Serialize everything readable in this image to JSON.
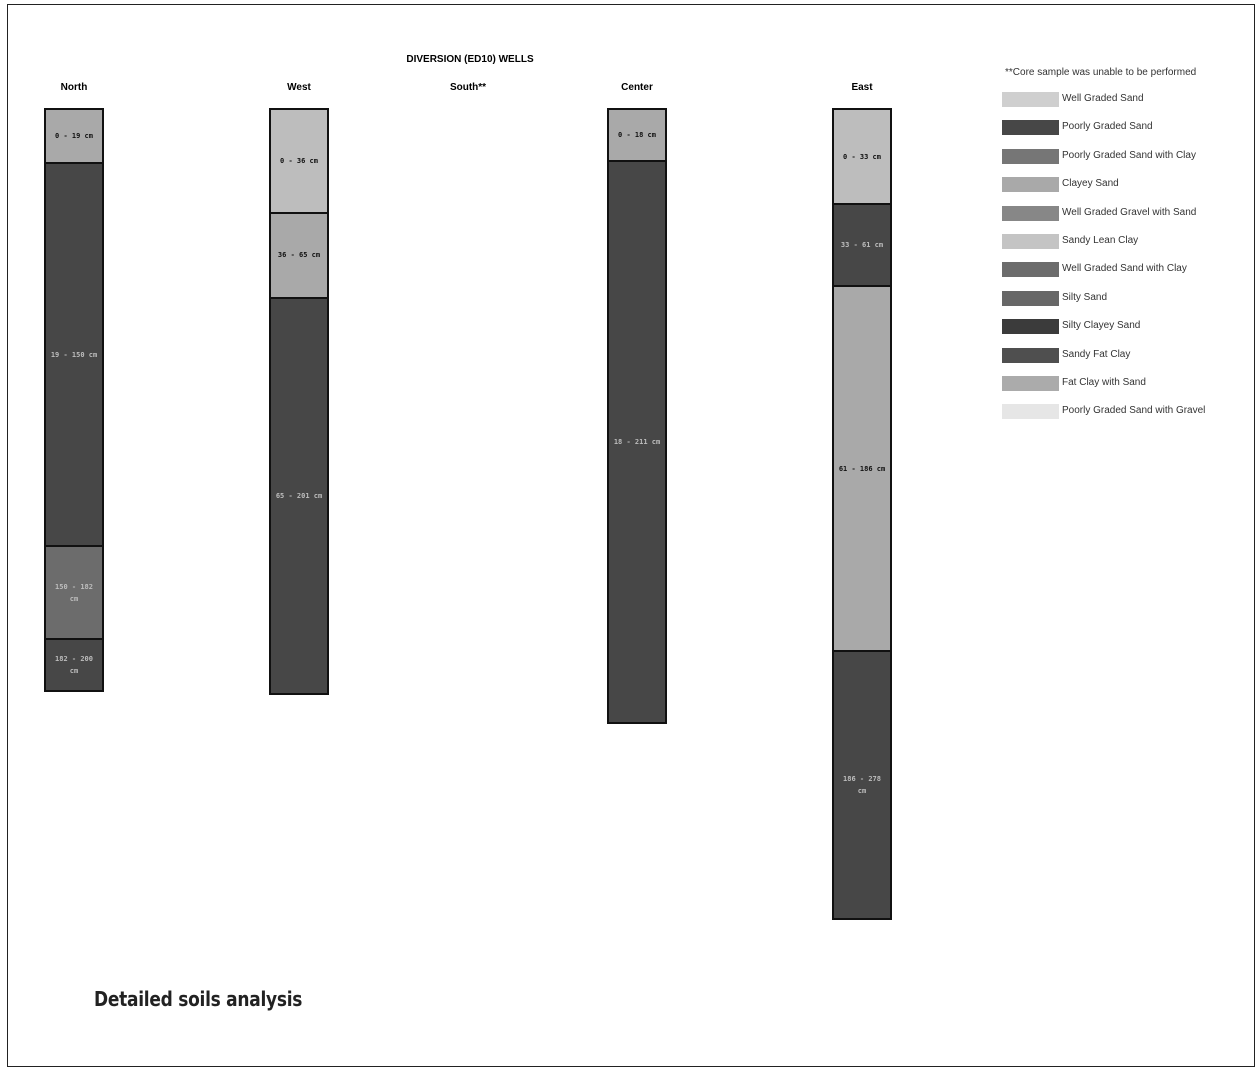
{
  "title": "DIVERSION (ED10) WELLS",
  "wells": [
    {
      "name": "North",
      "layers": [
        {
          "label": "0 - 19 cm",
          "top_cm": 0,
          "bottom_cm": 19,
          "color": "#a9a9a9"
        },
        {
          "label": "19 - 150 cm",
          "top_cm": 19,
          "bottom_cm": 150,
          "color": "#474747"
        },
        {
          "label": "150 - 182 cm",
          "top_cm": 150,
          "bottom_cm": 182,
          "color": "#6c6c6c"
        },
        {
          "label": "182 - 200 cm",
          "top_cm": 182,
          "bottom_cm": 200,
          "color": "#474747"
        }
      ]
    },
    {
      "name": "West",
      "layers": [
        {
          "label": "0 - 36 cm",
          "top_cm": 0,
          "bottom_cm": 36,
          "color": "#bdbdbd"
        },
        {
          "label": "36 - 65 cm",
          "top_cm": 36,
          "bottom_cm": 65,
          "color": "#a9a9a9"
        },
        {
          "label": "65 - 201 cm",
          "top_cm": 65,
          "bottom_cm": 201,
          "color": "#474747"
        }
      ]
    },
    {
      "name": "South**",
      "layers": []
    },
    {
      "name": "Center",
      "layers": [
        {
          "label": "0 - 18 cm",
          "top_cm": 0,
          "bottom_cm": 18,
          "color": "#a9a9a9"
        },
        {
          "label": "18 - 211 cm",
          "top_cm": 18,
          "bottom_cm": 211,
          "color": "#474747"
        }
      ]
    },
    {
      "name": "East",
      "layers": [
        {
          "label": "0 - 33 cm",
          "top_cm": 0,
          "bottom_cm": 33,
          "color": "#bdbdbd"
        },
        {
          "label": "33 - 61 cm",
          "top_cm": 33,
          "bottom_cm": 61,
          "color": "#474747"
        },
        {
          "label": "61 - 186 cm",
          "top_cm": 61,
          "bottom_cm": 186,
          "color": "#a9a9a9"
        },
        {
          "label": "186 - 278 cm",
          "top_cm": 186,
          "bottom_cm": 278,
          "color": "#474747"
        }
      ]
    }
  ],
  "legend": {
    "note": "**Core sample was unable to be performed",
    "items": [
      {
        "label": "Well Graded Sand",
        "color": "#cfcfcf"
      },
      {
        "label": "Poorly Graded Sand",
        "color": "#474747"
      },
      {
        "label": "Poorly Graded Sand with Clay",
        "color": "#767676"
      },
      {
        "label": "Clayey Sand",
        "color": "#a9a9a9"
      },
      {
        "label": "Well Graded Gravel with Sand",
        "color": "#878787"
      },
      {
        "label": "Sandy Lean Clay",
        "color": "#c4c4c4"
      },
      {
        "label": "Well Graded Sand with Clay",
        "color": "#6c6c6c"
      },
      {
        "label": "Silty Sand",
        "color": "#676767"
      },
      {
        "label": "Silty Clayey Sand",
        "color": "#3b3b3b"
      },
      {
        "label": "Sandy Fat Clay",
        "color": "#4f4f4f"
      },
      {
        "label": "Fat Clay with Sand",
        "color": "#ababab"
      },
      {
        "label": "Poorly Graded Sand with Gravel",
        "color": "#e6e6e6"
      }
    ]
  },
  "caption": "Detailed soils analysis"
}
